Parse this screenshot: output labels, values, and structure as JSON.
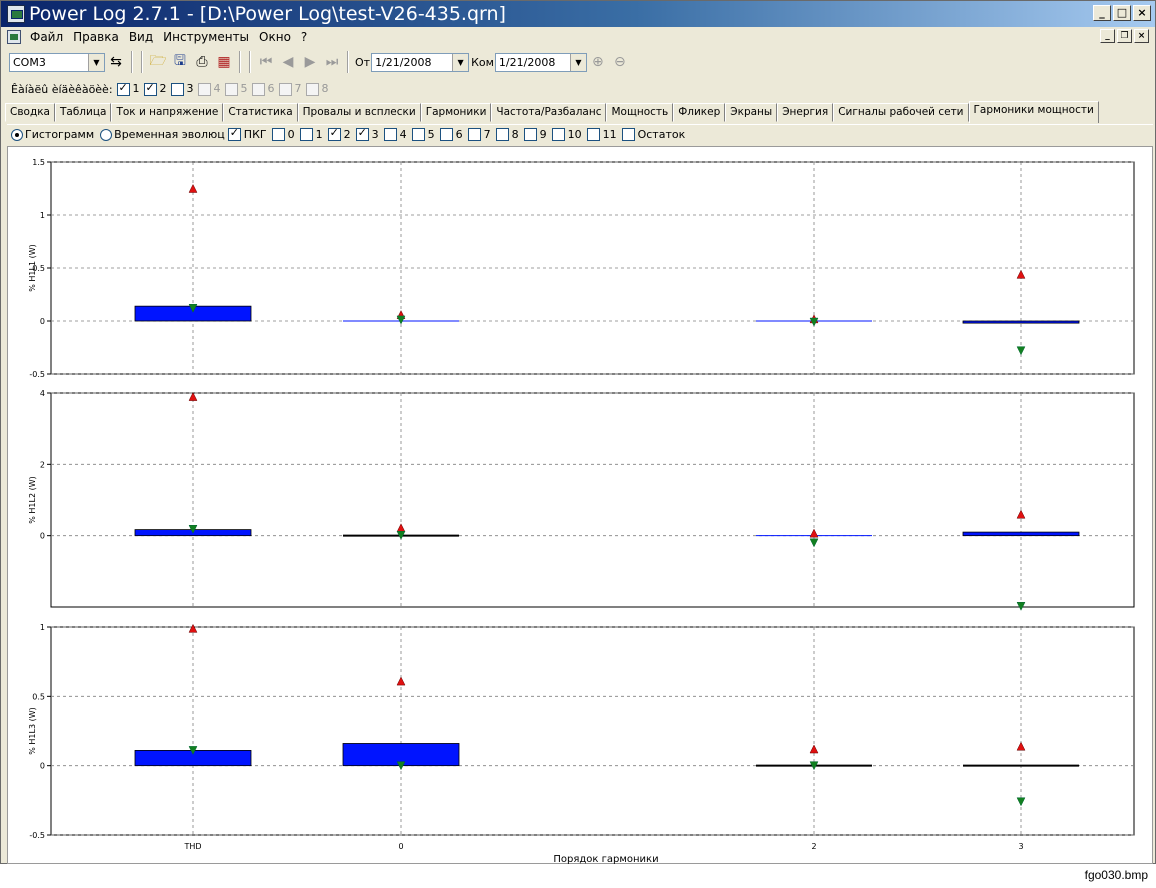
{
  "window": {
    "title": "Power Log 2.7.1 - [D:\\Power Log\\test-V26-435.qrn]"
  },
  "menu": [
    "Файл",
    "Правка",
    "Вид",
    "Инструменты",
    "Окно",
    "?"
  ],
  "toolbar": {
    "port": "COM3",
    "from_label": "От",
    "from_date": "1/21/2008",
    "to_label": "Ком",
    "to_date": "1/21/2008"
  },
  "channels": {
    "label": "Êàíàëû èíäèêàöèè:",
    "items": [
      {
        "label": "1",
        "checked": true,
        "enabled": true
      },
      {
        "label": "2",
        "checked": true,
        "enabled": true
      },
      {
        "label": "3",
        "checked": false,
        "enabled": true
      },
      {
        "label": "4",
        "checked": false,
        "enabled": false
      },
      {
        "label": "5",
        "checked": false,
        "enabled": false
      },
      {
        "label": "6",
        "checked": false,
        "enabled": false
      },
      {
        "label": "7",
        "checked": false,
        "enabled": false
      },
      {
        "label": "8",
        "checked": false,
        "enabled": false
      }
    ]
  },
  "tabs": [
    "Сводка",
    "Таблица",
    "Ток и напряжение",
    "Статистика",
    "Провалы и всплески",
    "Гармоники",
    "Частота/Разбаланс",
    "Мощность",
    "Фликер",
    "Экраны",
    "Энергия",
    "Сигналы рабочей сети",
    "Гармоники мощности"
  ],
  "active_tab": 12,
  "options": {
    "histogram": "Гистограмм",
    "time_evolution": "Временная эволюц",
    "checkboxes": [
      {
        "label": "ПКГ",
        "checked": true
      },
      {
        "label": "0",
        "checked": false
      },
      {
        "label": "1",
        "checked": false
      },
      {
        "label": "2",
        "checked": true
      },
      {
        "label": "3",
        "checked": true
      },
      {
        "label": "4",
        "checked": false
      },
      {
        "label": "5",
        "checked": false
      },
      {
        "label": "6",
        "checked": false
      },
      {
        "label": "7",
        "checked": false
      },
      {
        "label": "8",
        "checked": false
      },
      {
        "label": "9",
        "checked": false
      },
      {
        "label": "10",
        "checked": false
      },
      {
        "label": "11",
        "checked": false
      },
      {
        "label": "Остаток",
        "checked": false
      }
    ]
  },
  "chart_data": {
    "type": "bar",
    "categories": [
      "THD",
      "0",
      "2",
      "3"
    ],
    "xlabel": "Порядок гармоники",
    "colors": {
      "bar": "#0014ff",
      "max_marker": "#e01010",
      "min_marker": "#128020",
      "grid": "#808080"
    },
    "panels": [
      {
        "ylabel": "% H1L1 (W)",
        "ylim": [
          -0.5,
          1.5
        ],
        "yticks": [
          "1.5",
          "1",
          "0.5",
          "0",
          "-0.5"
        ],
        "ytick_values": [
          1.5,
          1,
          0.5,
          0,
          -0.5
        ],
        "values": [
          0.14,
          0.0,
          0.0,
          -0.02
        ],
        "max": [
          1.25,
          0.06,
          0.02,
          0.44
        ],
        "min": [
          0.12,
          0.01,
          -0.01,
          -0.28
        ]
      },
      {
        "ylabel": "% H1L2 (W)",
        "ylim": [
          -2.0,
          4.0
        ],
        "yticks": [
          "4",
          "2",
          "0"
        ],
        "ytick_values": [
          4,
          2,
          0
        ],
        "values": [
          0.17,
          0.04,
          0.0,
          0.1
        ],
        "max": [
          3.9,
          0.22,
          0.07,
          0.6
        ],
        "min": [
          0.18,
          0.01,
          -0.2,
          -1.98
        ]
      },
      {
        "ylabel": "% H1L3 (W)",
        "ylim": [
          -0.5,
          1.0
        ],
        "yticks": [
          "1",
          "0.5",
          "0",
          "-0.5"
        ],
        "ytick_values": [
          1,
          0.5,
          0,
          -0.5
        ],
        "values": [
          0.11,
          0.16,
          0.01,
          0.01
        ],
        "max": [
          0.99,
          0.61,
          0.12,
          0.14
        ],
        "min": [
          0.11,
          0.0,
          0.0,
          -0.26
        ]
      }
    ]
  },
  "caption": "fgo030.bmp"
}
